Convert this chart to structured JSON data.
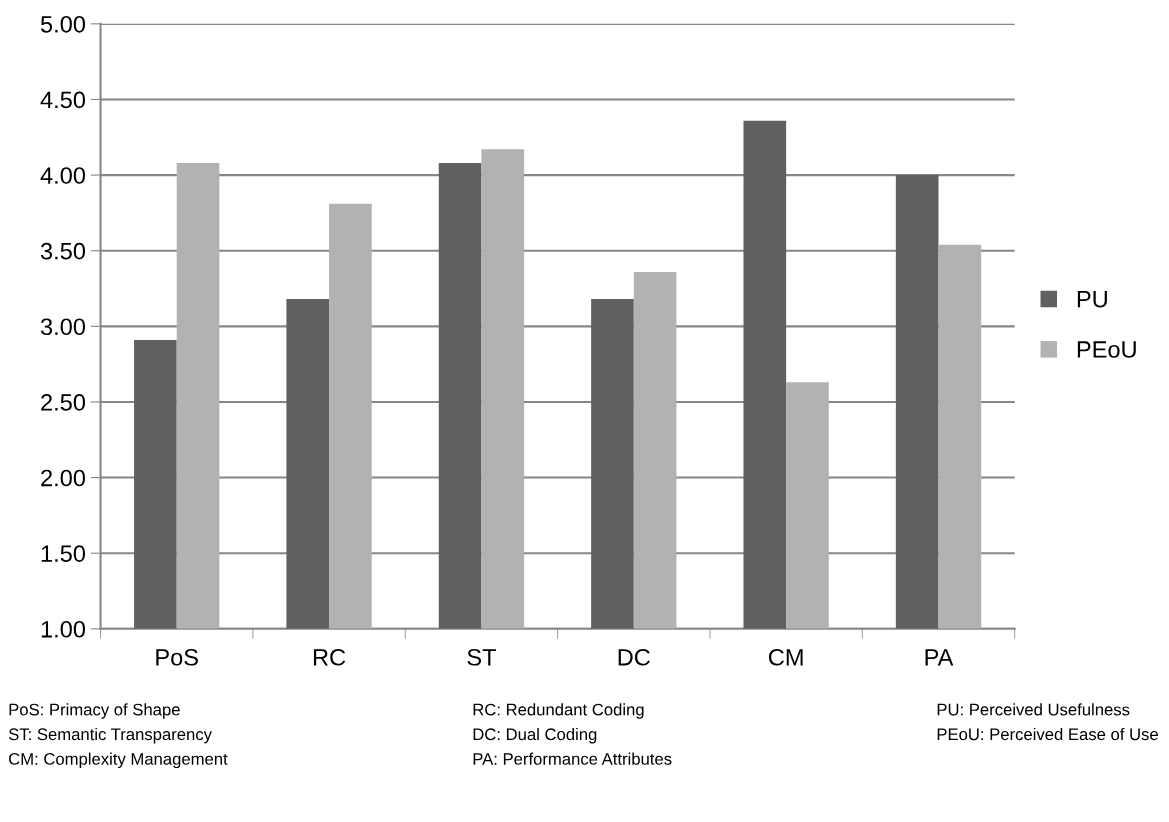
{
  "chart_data": {
    "type": "bar",
    "categories": [
      "PoS",
      "RC",
      "ST",
      "DC",
      "CM",
      "PA"
    ],
    "series": [
      {
        "name": "PU",
        "color": "#606060",
        "values": [
          2.91,
          3.18,
          4.08,
          3.18,
          4.36,
          4.0
        ]
      },
      {
        "name": "PEoU",
        "color": "#b2b2b2",
        "values": [
          4.08,
          3.81,
          4.17,
          3.36,
          2.63,
          3.54
        ]
      }
    ],
    "ylim": [
      1,
      5
    ],
    "yticks": [
      {
        "value": 1,
        "label": "1.00"
      },
      {
        "value": 1.5,
        "label": "1.50"
      },
      {
        "value": 2,
        "label": "2.00"
      },
      {
        "value": 2.5,
        "label": "2.50"
      },
      {
        "value": 3,
        "label": "3.00"
      },
      {
        "value": 3.5,
        "label": "3.50"
      },
      {
        "value": 4,
        "label": "4.00"
      },
      {
        "value": 4.5,
        "label": "4.50"
      },
      {
        "value": 5,
        "label": "5.00"
      }
    ],
    "grid": "y",
    "legend": "right",
    "annotations": [
      "PoS: Primacy of Shape",
      "RC: Redundant Coding",
      "PU: Perceived Usefulness",
      "ST: Semantic Transparency",
      "DC: Dual Coding",
      "PEoU: Perceived Ease of Use",
      "CM: Complexity Management",
      "PA: Performance Attributes"
    ]
  }
}
